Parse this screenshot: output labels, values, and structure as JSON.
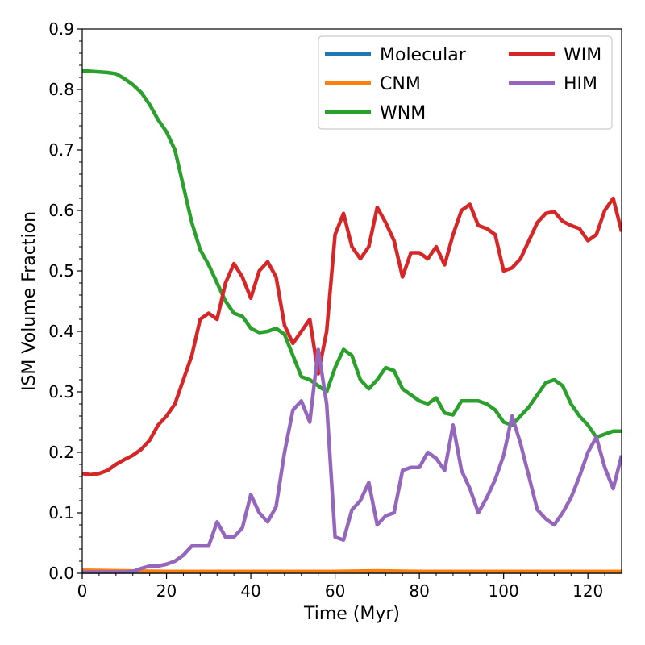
{
  "chart_data": {
    "type": "line",
    "xlabel": "Time (Myr)",
    "ylabel": "ISM Volume Fraction",
    "xlim": [
      0,
      128
    ],
    "ylim": [
      0,
      0.9
    ],
    "xticks": [
      0,
      20,
      40,
      60,
      80,
      100,
      120
    ],
    "yticks": [
      0.0,
      0.1,
      0.2,
      0.3,
      0.4,
      0.5,
      0.6,
      0.7,
      0.8,
      0.9
    ],
    "xtick_labels": [
      "0",
      "20",
      "40",
      "60",
      "80",
      "100",
      "120"
    ],
    "ytick_labels": [
      "0.0",
      "0.1",
      "0.2",
      "0.3",
      "0.4",
      "0.5",
      "0.6",
      "0.7",
      "0.8",
      "0.9"
    ],
    "grid": false,
    "legend": {
      "placement": "top-right",
      "columns": 2
    },
    "series": [
      {
        "name": "Molecular",
        "color": "#1f77b4",
        "x": [
          0,
          128
        ],
        "y": [
          0.002,
          0.002
        ]
      },
      {
        "name": "CNM",
        "color": "#ff7f0e",
        "x": [
          0,
          10,
          20,
          30,
          40,
          50,
          60,
          70,
          80,
          90,
          100,
          110,
          120,
          128
        ],
        "y": [
          0.005,
          0.004,
          0.003,
          0.003,
          0.003,
          0.003,
          0.003,
          0.004,
          0.003,
          0.003,
          0.003,
          0.003,
          0.003,
          0.003
        ]
      },
      {
        "name": "WNM",
        "color": "#2ca02c",
        "x": [
          0,
          2,
          4,
          6,
          8,
          10,
          12,
          14,
          16,
          18,
          20,
          22,
          24,
          26,
          28,
          30,
          32,
          34,
          36,
          38,
          40,
          42,
          44,
          46,
          48,
          50,
          52,
          54,
          56,
          58,
          60,
          62,
          64,
          66,
          68,
          70,
          72,
          74,
          76,
          78,
          80,
          82,
          84,
          86,
          88,
          90,
          92,
          94,
          96,
          98,
          100,
          102,
          104,
          106,
          108,
          110,
          112,
          114,
          116,
          118,
          120,
          122,
          124,
          126,
          128
        ],
        "y": [
          0.831,
          0.83,
          0.829,
          0.828,
          0.826,
          0.818,
          0.808,
          0.795,
          0.775,
          0.75,
          0.73,
          0.7,
          0.64,
          0.58,
          0.535,
          0.51,
          0.48,
          0.45,
          0.43,
          0.425,
          0.405,
          0.398,
          0.4,
          0.405,
          0.395,
          0.36,
          0.325,
          0.32,
          0.31,
          0.3,
          0.34,
          0.37,
          0.36,
          0.32,
          0.305,
          0.32,
          0.34,
          0.335,
          0.305,
          0.295,
          0.285,
          0.28,
          0.29,
          0.265,
          0.262,
          0.285,
          0.285,
          0.285,
          0.28,
          0.27,
          0.25,
          0.245,
          0.26,
          0.275,
          0.295,
          0.315,
          0.32,
          0.31,
          0.28,
          0.26,
          0.245,
          0.225,
          0.23,
          0.235,
          0.235
        ]
      },
      {
        "name": "WIM",
        "color": "#d62728",
        "x": [
          0,
          2,
          4,
          6,
          8,
          10,
          12,
          14,
          16,
          18,
          20,
          22,
          24,
          26,
          28,
          30,
          32,
          34,
          36,
          38,
          40,
          42,
          44,
          46,
          48,
          50,
          52,
          54,
          56,
          58,
          60,
          62,
          64,
          66,
          68,
          70,
          72,
          74,
          76,
          78,
          80,
          82,
          84,
          86,
          88,
          90,
          92,
          94,
          96,
          98,
          100,
          102,
          104,
          106,
          108,
          110,
          112,
          114,
          116,
          118,
          120,
          122,
          124,
          126,
          128
        ],
        "y": [
          0.165,
          0.163,
          0.165,
          0.17,
          0.18,
          0.188,
          0.195,
          0.205,
          0.22,
          0.245,
          0.26,
          0.28,
          0.32,
          0.36,
          0.42,
          0.43,
          0.42,
          0.48,
          0.512,
          0.49,
          0.455,
          0.5,
          0.515,
          0.49,
          0.41,
          0.38,
          0.4,
          0.42,
          0.33,
          0.4,
          0.56,
          0.595,
          0.54,
          0.52,
          0.54,
          0.605,
          0.58,
          0.55,
          0.49,
          0.53,
          0.53,
          0.52,
          0.54,
          0.51,
          0.56,
          0.6,
          0.61,
          0.575,
          0.57,
          0.56,
          0.5,
          0.505,
          0.52,
          0.55,
          0.58,
          0.595,
          0.598,
          0.582,
          0.575,
          0.57,
          0.55,
          0.56,
          0.6,
          0.62,
          0.565
        ]
      },
      {
        "name": "HIM",
        "color": "#9467bd",
        "x": [
          0,
          2,
          4,
          6,
          8,
          10,
          12,
          14,
          16,
          18,
          20,
          22,
          24,
          26,
          28,
          30,
          32,
          34,
          36,
          38,
          40,
          42,
          44,
          46,
          48,
          50,
          52,
          54,
          56,
          58,
          60,
          62,
          64,
          66,
          68,
          70,
          72,
          74,
          76,
          78,
          80,
          82,
          84,
          86,
          88,
          90,
          92,
          94,
          96,
          98,
          100,
          102,
          104,
          106,
          108,
          110,
          112,
          114,
          116,
          118,
          120,
          122,
          124,
          126,
          128
        ],
        "y": [
          0.002,
          0.002,
          0.002,
          0.002,
          0.002,
          0.002,
          0.003,
          0.008,
          0.012,
          0.012,
          0.015,
          0.02,
          0.03,
          0.045,
          0.045,
          0.045,
          0.085,
          0.06,
          0.06,
          0.075,
          0.13,
          0.1,
          0.085,
          0.11,
          0.2,
          0.27,
          0.285,
          0.25,
          0.37,
          0.28,
          0.06,
          0.055,
          0.105,
          0.12,
          0.15,
          0.08,
          0.095,
          0.1,
          0.17,
          0.175,
          0.175,
          0.2,
          0.19,
          0.17,
          0.245,
          0.17,
          0.14,
          0.1,
          0.125,
          0.155,
          0.195,
          0.26,
          0.215,
          0.16,
          0.105,
          0.09,
          0.08,
          0.1,
          0.125,
          0.16,
          0.2,
          0.225,
          0.175,
          0.14,
          0.195
        ]
      }
    ]
  }
}
